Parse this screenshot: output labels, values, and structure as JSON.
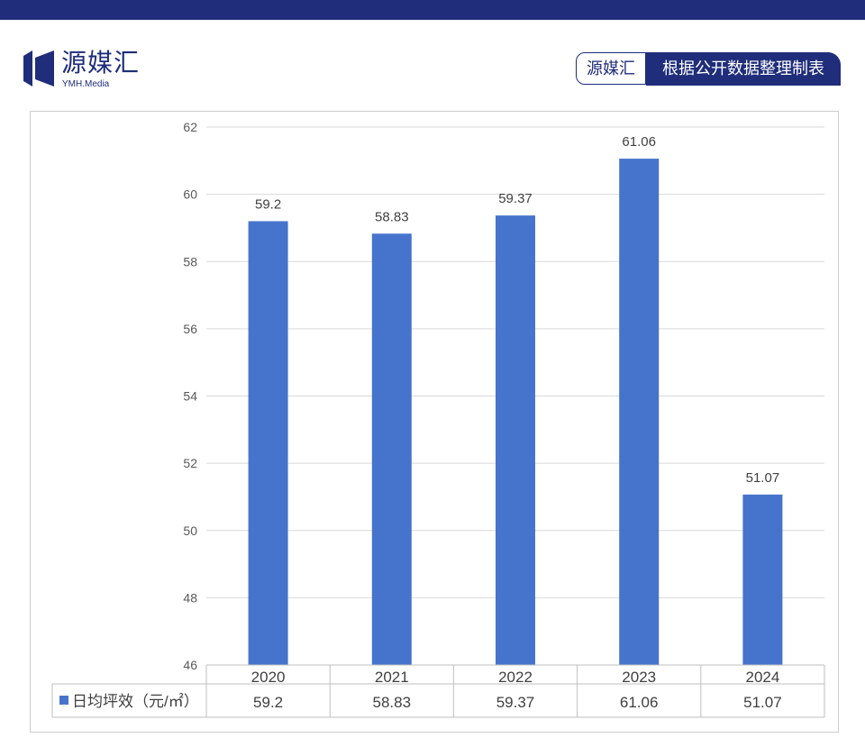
{
  "header": {
    "brand_name": "源媒汇",
    "brand_sub": "YMH.Media",
    "source_brand": "源媒汇",
    "source_text": "根据公开数据整理制表"
  },
  "colors": {
    "bar": "#4674cc",
    "brand": "#1f2d7a",
    "grid": "#d9d9d9"
  },
  "chart_data": {
    "type": "bar",
    "categories": [
      "2020",
      "2021",
      "2022",
      "2023",
      "2024"
    ],
    "series": [
      {
        "name": "日均坪效（元/㎡）",
        "values": [
          59.2,
          58.83,
          59.37,
          61.06,
          51.07
        ]
      }
    ],
    "value_labels": [
      "59.2",
      "58.83",
      "59.37",
      "61.06",
      "51.07"
    ],
    "y_ticks": [
      "46",
      "48",
      "50",
      "52",
      "54",
      "56",
      "58",
      "60",
      "62"
    ],
    "ylim": [
      46,
      62
    ],
    "grid": true,
    "legend": "data-table"
  }
}
